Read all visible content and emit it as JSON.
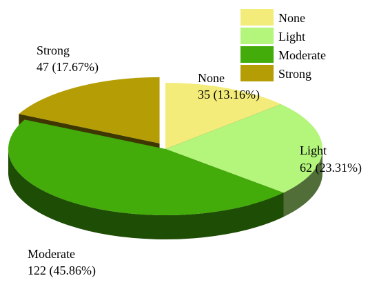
{
  "chart_data": {
    "type": "pie",
    "title": "",
    "categories": [
      "None",
      "Light",
      "Moderate",
      "Strong"
    ],
    "values": [
      35,
      62,
      122,
      47
    ],
    "percents": [
      "13.16%",
      "23.31%",
      "45.86%",
      "17.67%"
    ],
    "colors": [
      "#f3ec7a",
      "#b4f57c",
      "#43ab0a",
      "#b59d06"
    ],
    "exploded": "Strong",
    "legend_position": "top-right",
    "labels": [
      {
        "name": "None",
        "value_text": "35 (13.16%)"
      },
      {
        "name": "Light",
        "value_text": "62 (23.31%)"
      },
      {
        "name": "Moderate",
        "value_text": "122 (45.86%)"
      },
      {
        "name": "Strong",
        "value_text": "47 (17.67%)"
      }
    ]
  }
}
